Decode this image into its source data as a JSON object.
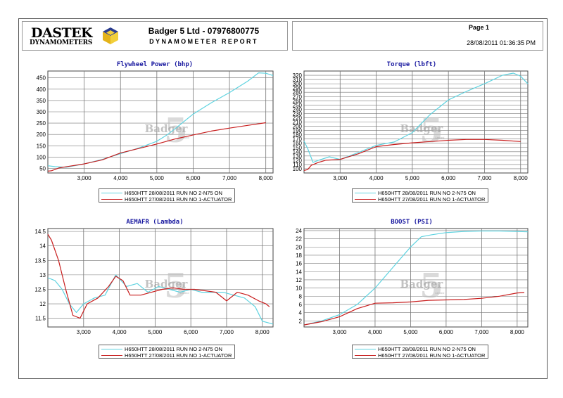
{
  "header": {
    "logo_line1": "DASTEK",
    "logo_line2": "DYNAMOMETERS",
    "company": "Badger 5 Ltd - 07976800775",
    "report_title": "DYNAMOMETER REPORT",
    "page": "Page 1",
    "datetime": "28/08/2011 01:36:35 PM"
  },
  "watermark": {
    "text": "Badger",
    "number": "5",
    "sub": "Limited"
  },
  "colors": {
    "cyan": "#5fd3e0",
    "red": "#c81e1e",
    "grid": "#777777",
    "title": "#1a1aa0"
  },
  "legend": [
    {
      "label": "H650HTT 28/08/2011 RUN NO 2-N75 ON",
      "color": "#5fd3e0"
    },
    {
      "label": "H650HTT 27/08/2011 RUN NO 1-ACTUATOR",
      "color": "#c81e1e"
    }
  ],
  "chart_data": [
    {
      "type": "line",
      "title": "Flywheel Power (bhp)",
      "xlim": [
        2000,
        8200
      ],
      "ylim": [
        30,
        480
      ],
      "x_ticks": [
        3000,
        4000,
        5000,
        6000,
        7000,
        8000
      ],
      "x_tick_labels": [
        "3,000",
        "4,000",
        "5,000",
        "6,000",
        "7,000",
        "8,000"
      ],
      "y_ticks": [
        50,
        100,
        150,
        200,
        250,
        300,
        350,
        400,
        450
      ],
      "y_tick_labels": [
        "50",
        "100",
        "150",
        "200",
        "250",
        "300",
        "350",
        "400",
        "450"
      ],
      "series": [
        {
          "name": "H650HTT 28/08/2011 RUN NO 2-N75 ON",
          "x": [
            2000,
            2200,
            2500,
            3000,
            3500,
            4000,
            4500,
            5000,
            5300,
            5500,
            6000,
            6500,
            7000,
            7500,
            7800,
            8000,
            8200
          ],
          "y": [
            62,
            58,
            55,
            70,
            90,
            115,
            140,
            170,
            200,
            225,
            290,
            340,
            385,
            435,
            472,
            470,
            460
          ]
        },
        {
          "name": "H650HTT 27/08/2011 RUN NO 1-ACTUATOR",
          "x": [
            2000,
            2100,
            2300,
            2600,
            3000,
            3500,
            4000,
            4500,
            5000,
            5500,
            6000,
            6500,
            7000,
            7500,
            8000
          ],
          "y": [
            38,
            40,
            52,
            60,
            70,
            88,
            118,
            138,
            158,
            180,
            198,
            215,
            228,
            240,
            252
          ]
        }
      ]
    },
    {
      "type": "line",
      "title": "Torque (lbft)",
      "xlim": [
        2000,
        8200
      ],
      "ylim": [
        90,
        330
      ],
      "x_ticks": [
        3000,
        4000,
        5000,
        6000,
        7000,
        8000
      ],
      "x_tick_labels": [
        "3,000",
        "4,000",
        "5,000",
        "6,000",
        "7,000",
        "8,000"
      ],
      "y_ticks": [
        100,
        110,
        120,
        130,
        140,
        150,
        160,
        170,
        180,
        190,
        200,
        210,
        220,
        230,
        240,
        250,
        260,
        270,
        280,
        290,
        300,
        310,
        320
      ],
      "y_tick_labels": [
        "100",
        "110",
        "120",
        "130",
        "140",
        "150",
        "160",
        "170",
        "180",
        "190",
        "200",
        "210",
        "220",
        "230",
        "240",
        "250",
        "260",
        "270",
        "280",
        "290",
        "300",
        "310",
        "320"
      ],
      "series": [
        {
          "name": "H650HTT 28/08/2011 RUN NO 2-N75 ON",
          "x": [
            2000,
            2100,
            2250,
            2400,
            2700,
            3000,
            3500,
            4000,
            4500,
            5000,
            5500,
            6000,
            6500,
            7000,
            7500,
            7800,
            8000,
            8200
          ],
          "y": [
            165,
            148,
            115,
            120,
            128,
            122,
            138,
            155,
            163,
            185,
            228,
            262,
            282,
            300,
            320,
            325,
            318,
            300
          ]
        },
        {
          "name": "H650HTT 27/08/2011 RUN NO 1-ACTUATOR",
          "x": [
            2000,
            2100,
            2200,
            2400,
            2600,
            3000,
            3500,
            4000,
            4500,
            5000,
            5500,
            6000,
            6500,
            7000,
            7500,
            8000
          ],
          "y": [
            96,
            98,
            108,
            115,
            120,
            122,
            135,
            152,
            157,
            161,
            164,
            167,
            169,
            169,
            167,
            164
          ]
        }
      ]
    },
    {
      "type": "line",
      "title": "AEMAFR (Lambda)",
      "xlim": [
        2000,
        8300
      ],
      "ylim": [
        11.2,
        14.6
      ],
      "x_ticks": [
        3000,
        4000,
        5000,
        6000,
        7000,
        8000
      ],
      "x_tick_labels": [
        "3,000",
        "4,000",
        "5,000",
        "6,000",
        "7,000",
        "8,000"
      ],
      "y_ticks": [
        11.5,
        12,
        12.5,
        13,
        13.5,
        14,
        14.5
      ],
      "y_tick_labels": [
        "11.5",
        "12",
        "12.5",
        "13",
        "13.5",
        "14",
        "14.5"
      ],
      "series": [
        {
          "name": "H650HTT 28/08/2011 RUN NO 2-N75 ON",
          "x": [
            2000,
            2200,
            2400,
            2600,
            2800,
            3000,
            3300,
            3600,
            3900,
            4200,
            4500,
            4800,
            5100,
            5400,
            5700,
            6000,
            6300,
            6600,
            6900,
            7200,
            7500,
            7800,
            8000,
            8300
          ],
          "y": [
            12.9,
            12.8,
            12.5,
            12.0,
            11.7,
            12.0,
            12.2,
            12.3,
            13.0,
            12.6,
            12.7,
            12.4,
            12.6,
            12.5,
            12.4,
            12.5,
            12.4,
            12.4,
            12.4,
            12.3,
            12.2,
            11.9,
            11.4,
            11.3
          ]
        },
        {
          "name": "H650HTT 27/08/2011 RUN NO 1-ACTUATOR",
          "x": [
            2000,
            2100,
            2300,
            2500,
            2700,
            2900,
            3100,
            3400,
            3700,
            3900,
            4100,
            4300,
            4600,
            4900,
            5200,
            5500,
            5800,
            6100,
            6400,
            6700,
            7000,
            7300,
            7600,
            7900,
            8100,
            8200
          ],
          "y": [
            14.4,
            14.2,
            13.5,
            12.5,
            11.6,
            11.5,
            12.0,
            12.2,
            12.6,
            12.95,
            12.8,
            12.3,
            12.3,
            12.4,
            12.5,
            12.55,
            12.5,
            12.5,
            12.45,
            12.4,
            12.1,
            12.4,
            12.3,
            12.1,
            12.0,
            11.9
          ]
        }
      ]
    },
    {
      "type": "line",
      "title": "BOOST (PSI)",
      "xlim": [
        2000,
        8300
      ],
      "ylim": [
        0.5,
        24.5
      ],
      "x_ticks": [
        3000,
        4000,
        5000,
        6000,
        7000,
        8000
      ],
      "x_tick_labels": [
        "3,000",
        "4,000",
        "5,000",
        "6,000",
        "7,000",
        "8,000"
      ],
      "y_ticks": [
        2,
        4,
        6,
        8,
        10,
        12,
        14,
        16,
        18,
        20,
        22,
        24
      ],
      "y_tick_labels": [
        "2",
        "4",
        "6",
        "8",
        "10",
        "12",
        "14",
        "16",
        "18",
        "20",
        "22",
        "24"
      ],
      "series": [
        {
          "name": "H650HTT 28/08/2011 RUN NO 2-N75 ON",
          "x": [
            2000,
            2500,
            3000,
            3500,
            4000,
            4500,
            5000,
            5300,
            5600,
            6000,
            6500,
            7000,
            7500,
            8000,
            8300
          ],
          "y": [
            1.0,
            2.0,
            3.5,
            6.0,
            10.0,
            15.0,
            20.0,
            22.5,
            23.0,
            23.5,
            23.8,
            23.9,
            23.9,
            23.8,
            23.7
          ]
        },
        {
          "name": "H650HTT 27/08/2011 RUN NO 1-ACTUATOR",
          "x": [
            2000,
            2500,
            3000,
            3500,
            4000,
            4500,
            5000,
            5500,
            6000,
            6500,
            7000,
            7500,
            8000,
            8200
          ],
          "y": [
            1.0,
            1.8,
            3.0,
            5.0,
            6.3,
            6.4,
            6.6,
            7.0,
            7.1,
            7.2,
            7.5,
            8.0,
            8.8,
            8.9
          ]
        }
      ]
    }
  ]
}
